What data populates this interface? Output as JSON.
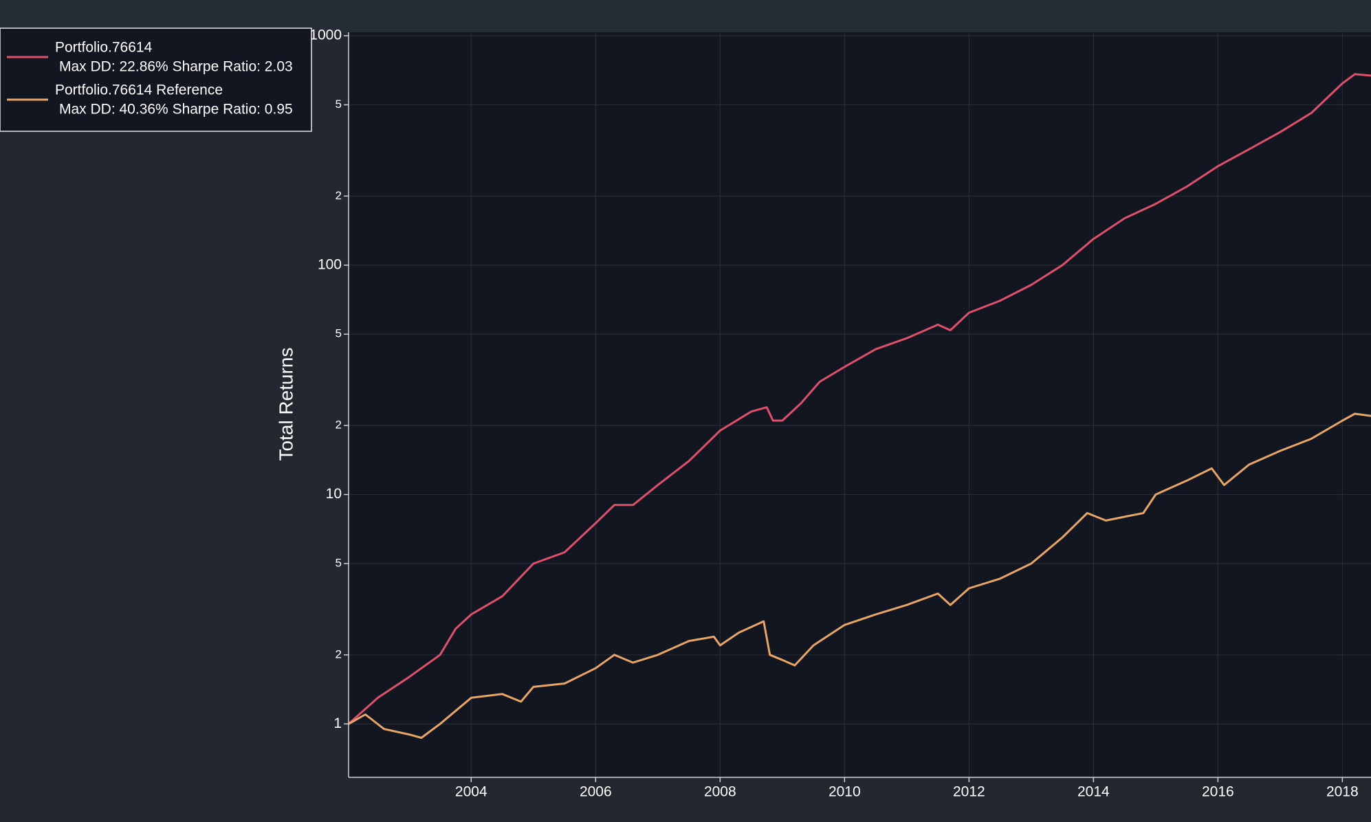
{
  "chart_data": {
    "type": "line",
    "y_label": "Total Returns",
    "y_scale": "log",
    "grid": true,
    "legend": "upper left",
    "xlim": [
      2002.03,
      2018.46
    ],
    "xticks": [
      2004,
      2006,
      2008,
      2010,
      2012,
      2014,
      2016,
      2018
    ],
    "ylim": [
      0.585,
      1035
    ],
    "yticks": [
      1,
      2,
      5,
      10,
      {
        "value": 20,
        "label": "2"
      },
      {
        "value": 50,
        "label": "5"
      },
      100,
      {
        "value": 200,
        "label": "2"
      },
      {
        "value": 500,
        "label": "5"
      },
      1000
    ],
    "series": [
      {
        "name": "Portfolio.76614",
        "legend_note": "Max DD: 22.86% Sharpe Ratio: 2.03",
        "color": "#e0506a",
        "x": [
          2002.03,
          2002.5,
          2003.0,
          2003.5,
          2003.75,
          2004.0,
          2004.5,
          2005.0,
          2005.5,
          2006.0,
          2006.3,
          2006.6,
          2007.0,
          2007.5,
          2008.0,
          2008.5,
          2008.75,
          2008.85,
          2009.0,
          2009.3,
          2009.6,
          2010.0,
          2010.5,
          2011.0,
          2011.5,
          2011.7,
          2012.0,
          2012.5,
          2013.0,
          2013.5,
          2014.0,
          2014.5,
          2015.0,
          2015.5,
          2016.0,
          2016.5,
          2017.0,
          2017.5,
          2018.0,
          2018.2,
          2018.46
        ],
        "values": [
          1.0,
          1.3,
          1.6,
          2.0,
          2.6,
          3.0,
          3.6,
          5.0,
          5.6,
          7.5,
          9.0,
          9.0,
          11,
          14,
          19,
          23,
          24,
          21,
          21,
          25,
          31,
          36,
          43,
          48,
          55,
          52,
          62,
          70,
          82,
          100,
          130,
          160,
          185,
          220,
          270,
          320,
          380,
          460,
          620,
          680,
          670
        ]
      },
      {
        "name": "Portfolio.76614 Reference",
        "legend_note": "Max DD: 40.36% Sharpe Ratio: 0.95",
        "color": "#e8a563",
        "x": [
          2002.03,
          2002.3,
          2002.6,
          2003.0,
          2003.2,
          2003.5,
          2004.0,
          2004.5,
          2004.8,
          2005.0,
          2005.5,
          2006.0,
          2006.3,
          2006.6,
          2007.0,
          2007.5,
          2007.9,
          2008.0,
          2008.3,
          2008.7,
          2008.8,
          2009.0,
          2009.2,
          2009.5,
          2010.0,
          2010.5,
          2011.0,
          2011.5,
          2011.7,
          2012.0,
          2012.5,
          2013.0,
          2013.5,
          2013.9,
          2014.2,
          2014.5,
          2014.8,
          2015.0,
          2015.5,
          2015.9,
          2016.1,
          2016.5,
          2017.0,
          2017.5,
          2018.0,
          2018.2,
          2018.46
        ],
        "values": [
          1.0,
          1.1,
          0.95,
          0.9,
          0.87,
          1.0,
          1.3,
          1.35,
          1.25,
          1.45,
          1.5,
          1.75,
          2.0,
          1.85,
          2.0,
          2.3,
          2.4,
          2.2,
          2.5,
          2.8,
          2.0,
          1.9,
          1.8,
          2.2,
          2.7,
          3.0,
          3.3,
          3.7,
          3.3,
          3.9,
          4.3,
          5.0,
          6.5,
          8.3,
          7.7,
          8.0,
          8.3,
          10,
          11.5,
          13,
          11,
          13.5,
          15.5,
          17.5,
          21,
          22.5,
          22
        ]
      }
    ]
  }
}
